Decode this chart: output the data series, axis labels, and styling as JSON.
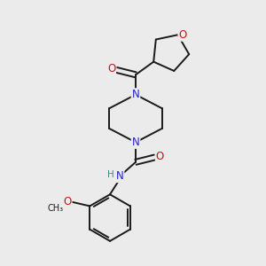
{
  "bg_color": "#ebebeb",
  "bond_color": "#1a1a1a",
  "N_color": "#2222cc",
  "O_color": "#cc1111",
  "H_color": "#3a8a8a",
  "font_size_atom": 8.5,
  "line_width": 1.4,
  "figsize": [
    3.0,
    3.0
  ],
  "dpi": 100,
  "xlim": [
    0,
    10
  ],
  "ylim": [
    0,
    10
  ]
}
